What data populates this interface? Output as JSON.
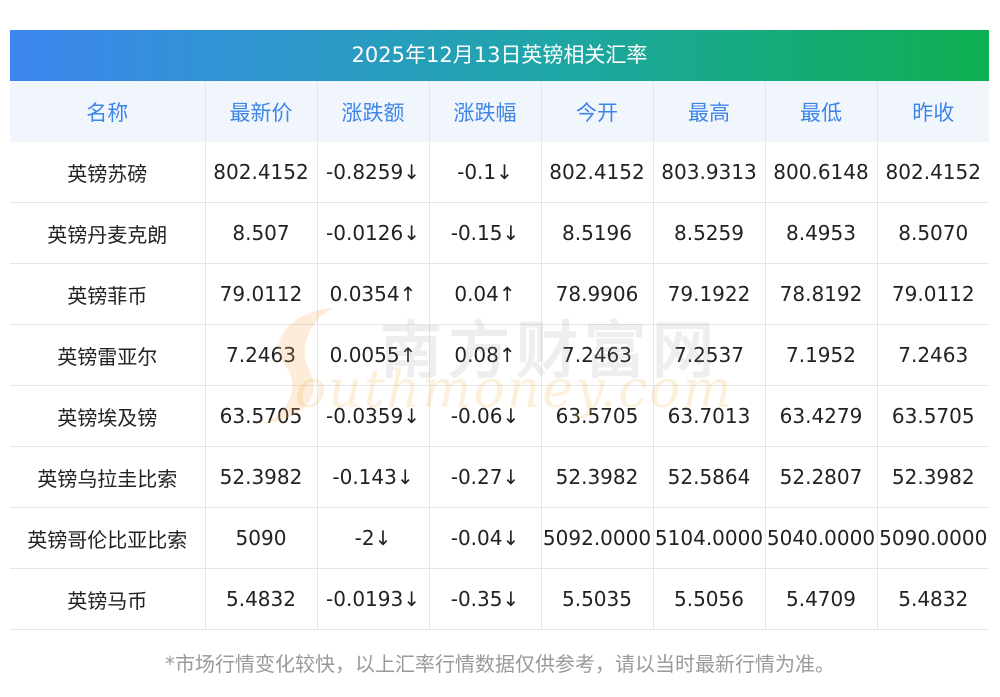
{
  "title": "2025年12月13日英镑相关汇率",
  "headers": [
    "名称",
    "最新价",
    "涨跌额",
    "涨跌幅",
    "今开",
    "最高",
    "最低",
    "昨收"
  ],
  "colors": {
    "up": "#e01f1f",
    "down": "#1a8a2b",
    "header_text": "#3d86e8"
  },
  "rows": [
    {
      "name": "英镑苏磅",
      "latest": "802.4152",
      "change": "-0.8259↓",
      "pct": "-0.1↓",
      "open": "802.4152",
      "high": "803.9313",
      "low": "800.6148",
      "prev": "802.4152",
      "dir": "down"
    },
    {
      "name": "英镑丹麦克朗",
      "latest": "8.507",
      "change": "-0.0126↓",
      "pct": "-0.15↓",
      "open": "8.5196",
      "high": "8.5259",
      "low": "8.4953",
      "prev": "8.5070",
      "dir": "down"
    },
    {
      "name": "英镑菲币",
      "latest": "79.0112",
      "change": "0.0354↑",
      "pct": "0.04↑",
      "open": "78.9906",
      "high": "79.1922",
      "low": "78.8192",
      "prev": "79.0112",
      "dir": "up"
    },
    {
      "name": "英镑雷亚尔",
      "latest": "7.2463",
      "change": "0.0055↑",
      "pct": "0.08↑",
      "open": "7.2463",
      "high": "7.2537",
      "low": "7.1952",
      "prev": "7.2463",
      "dir": "up"
    },
    {
      "name": "英镑埃及镑",
      "latest": "63.5705",
      "change": "-0.0359↓",
      "pct": "-0.06↓",
      "open": "63.5705",
      "high": "63.7013",
      "low": "63.4279",
      "prev": "63.5705",
      "dir": "down"
    },
    {
      "name": "英镑乌拉圭比索",
      "latest": "52.3982",
      "change": "-0.143↓",
      "pct": "-0.27↓",
      "open": "52.3982",
      "high": "52.5864",
      "low": "52.2807",
      "prev": "52.3982",
      "dir": "down"
    },
    {
      "name": "英镑哥伦比亚比索",
      "latest": "5090",
      "change": "-2↓",
      "pct": "-0.04↓",
      "open": "5092.0000",
      "high": "5104.0000",
      "low": "5040.0000",
      "prev": "5090.0000",
      "dir": "down"
    },
    {
      "name": "英镑马币",
      "latest": "5.4832",
      "change": "-0.0193↓",
      "pct": "-0.35↓",
      "open": "5.5035",
      "high": "5.5056",
      "low": "5.4709",
      "prev": "5.4832",
      "dir": "down"
    }
  ],
  "watermark": {
    "cn": "南方财富网",
    "en": "outhmoney.com"
  },
  "footer": "*市场行情变化较快，以上汇率行情数据仅供参考，请以当时最新行情为准。"
}
